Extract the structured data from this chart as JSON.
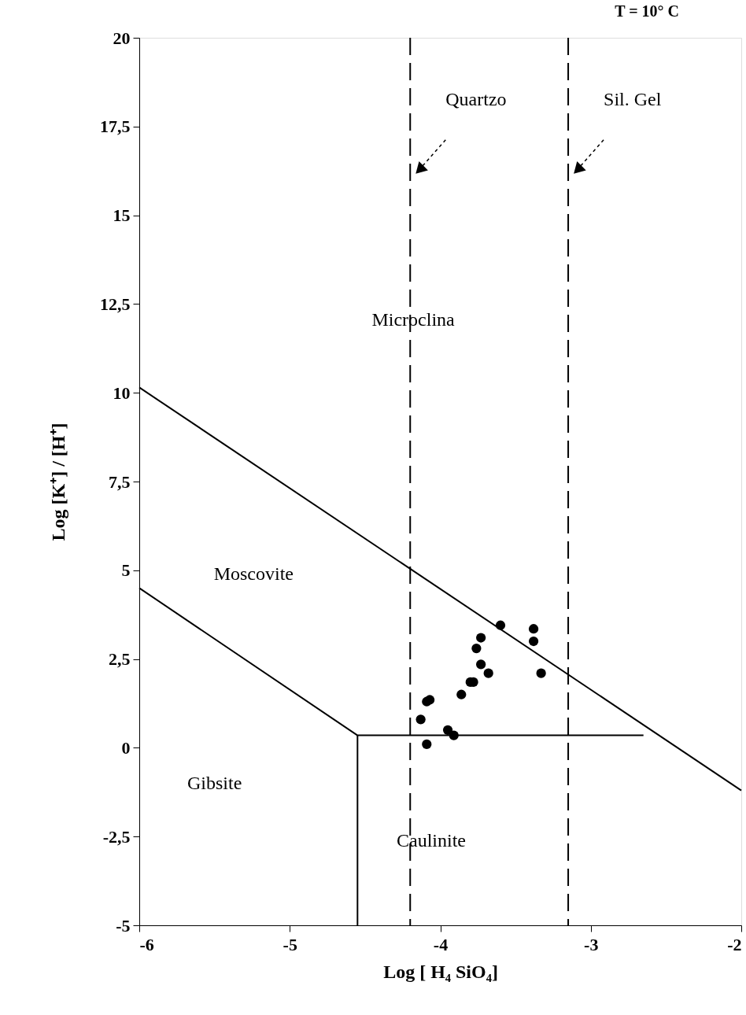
{
  "chart_data": {
    "type": "scatter",
    "title": "T = 10° C",
    "xlabel": "Log [ H₄ SiO₄]",
    "ylabel": "Log [K⁺] / [H⁺]",
    "xlim": [
      -6,
      -2
    ],
    "xticks": [
      -6,
      -5,
      -4,
      -3,
      -2
    ],
    "ylim": [
      -5,
      20
    ],
    "yticks": [
      -5,
      {
        "value": -2.5,
        "label": "-2,5"
      },
      0,
      {
        "value": 2.5,
        "label": "2,5"
      },
      5,
      {
        "value": 7.5,
        "label": "7,5"
      },
      10,
      {
        "value": 12.5,
        "label": "12,5"
      },
      15,
      {
        "value": 17.5,
        "label": "17,5"
      },
      20
    ],
    "grid": false,
    "series": [
      {
        "marker": "circle",
        "color": "#000000",
        "x": [
          -4.13,
          -4.09,
          -4.07,
          -4.09,
          -3.95,
          -3.91,
          -3.86,
          -3.8,
          -3.78,
          -3.76,
          -3.73,
          -3.73,
          -3.68,
          -3.6,
          -3.38,
          -3.38,
          -3.33
        ],
        "values": [
          0.8,
          1.3,
          1.35,
          0.1,
          0.5,
          0.35,
          1.5,
          1.85,
          1.85,
          2.8,
          3.1,
          2.35,
          2.1,
          3.45,
          3.35,
          3.0,
          2.1
        ]
      },
      {
        "type": "line",
        "color": "#000000",
        "x": [
          -6,
          -2
        ],
        "values": [
          10.15,
          -1.2
        ]
      },
      {
        "type": "line",
        "color": "#000000",
        "x": [
          -6,
          -4.55,
          -2.65
        ],
        "values": [
          4.5,
          0.35,
          0.35
        ]
      },
      {
        "type": "line",
        "color": "#000000",
        "x": [
          -4.55,
          -4.55
        ],
        "values": [
          0.35,
          -5
        ]
      }
    ],
    "ref_lines": [
      {
        "axis": "x",
        "value": -4.2,
        "label": "Quartzo",
        "line_style": "dashed",
        "color": "#000000"
      },
      {
        "axis": "x",
        "value": -3.15,
        "label": "Sil. Gel",
        "line_style": "dashed",
        "color": "#000000"
      }
    ],
    "annotations": [
      "Microclina",
      "Moscovite",
      "Gibsite",
      "Caulinite"
    ]
  }
}
